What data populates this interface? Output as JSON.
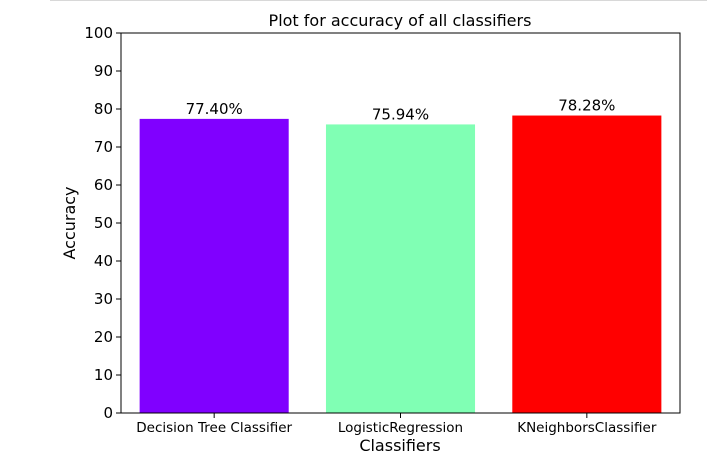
{
  "chart_data": {
    "type": "bar",
    "title": "Plot for accuracy of all classifiers",
    "xlabel": "Classifiers",
    "ylabel": "Accuracy",
    "categories": [
      "Decision Tree Classifier",
      "LogisticRegression",
      "KNeighborsClassifier"
    ],
    "values": [
      77.4,
      75.94,
      78.28
    ],
    "value_labels": [
      "77.40%",
      "75.94%",
      "78.28%"
    ],
    "colors": [
      "#8000ff",
      "#80ffb4",
      "#ff0000"
    ],
    "ylim": [
      0,
      100
    ],
    "yticks": [
      "0",
      "10",
      "20",
      "30",
      "40",
      "50",
      "60",
      "70",
      "80",
      "90",
      "100"
    ],
    "grid": false,
    "legend": "none"
  }
}
